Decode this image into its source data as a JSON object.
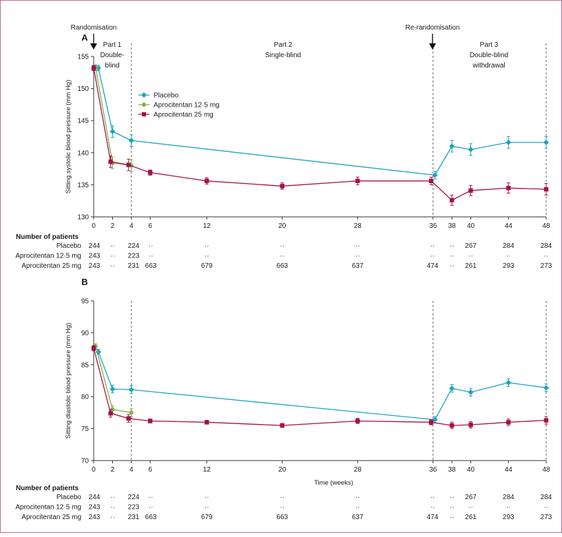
{
  "colors": {
    "placebo": "#1ca3c4",
    "aprocitentan_12_5": "#7cb342",
    "aprocitentan_25": "#a3124a",
    "axis": "#333333",
    "dashed": "#666666",
    "frame": "#c46a9a"
  },
  "annotations": {
    "randomisation": "Randomisation",
    "rerandomisation": "Re-randomisation",
    "part1": "Part 1",
    "part1_sub1": "Double-",
    "part1_sub2": "blind",
    "part2": "Part 2",
    "part2_sub": "Single-blind",
    "part3": "Part 3",
    "part3_sub1": "Double-blind",
    "part3_sub2": "withdrawal"
  },
  "time_label": "Time (weeks)",
  "x_ticks": [
    0,
    2,
    4,
    6,
    12,
    20,
    28,
    36,
    38,
    40,
    44,
    48
  ],
  "dividers": [
    4,
    36,
    48
  ],
  "patients_table": {
    "title": "Number of patients",
    "rows": [
      {
        "label": "Placebo",
        "values": [
          "244",
          "··",
          "224",
          "··",
          "··",
          "··",
          "··",
          "··",
          "··",
          "267",
          "284",
          "284"
        ]
      },
      {
        "label": "Aprocitentan 12·5 mg",
        "values": [
          "243",
          "··",
          "223",
          "··",
          "··",
          "··",
          "··",
          "··",
          "··",
          "··",
          "··",
          "··"
        ]
      },
      {
        "label": "Aprocitentan 25 mg",
        "values": [
          "243",
          "··",
          "231",
          "663",
          "679",
          "663",
          "637",
          "474",
          "··",
          "261",
          "293",
          "273"
        ]
      }
    ]
  },
  "chart_data": [
    {
      "panel": "A",
      "type": "line",
      "ylabel": "Sitting systolic blood pressure (mm Hg)",
      "xlabel": "",
      "ylim": [
        130,
        155
      ],
      "yticks": [
        130,
        135,
        140,
        145,
        150,
        155
      ],
      "xlim": [
        0,
        48
      ],
      "legend": {
        "position": "top-left",
        "entries": [
          "Placebo",
          "Aprocitentan 12·5 mg",
          "Aprocitentan 25 mg"
        ]
      },
      "series": [
        {
          "name": "Placebo",
          "marker": "diamond",
          "color_key": "placebo",
          "x": [
            0.5,
            2,
            4,
            36.2,
            38,
            40,
            44,
            48
          ],
          "y": [
            153.2,
            143.3,
            141.9,
            136.5,
            141.0,
            140.5,
            141.6,
            141.6
          ],
          "err": [
            0.4,
            0.9,
            0.9,
            0.6,
            0.9,
            0.9,
            0.9,
            0.9
          ]
        },
        {
          "name": "Aprocitentan 12·5 mg",
          "marker": "circle",
          "color_key": "aprocitentan_12_5",
          "x": [
            0.2,
            2,
            4
          ],
          "y": [
            153.3,
            138.4,
            138.0
          ],
          "err": [
            0.4,
            0.9,
            0.9
          ]
        },
        {
          "name": "Aprocitentan 25 mg",
          "marker": "square",
          "color_key": "aprocitentan_25",
          "x": [
            0,
            1.8,
            3.7,
            6,
            12,
            20,
            28,
            35.8,
            38,
            40,
            44,
            48
          ],
          "y": [
            153.2,
            138.6,
            138.1,
            136.9,
            135.6,
            134.8,
            135.6,
            135.6,
            132.6,
            134.1,
            134.5,
            134.3
          ],
          "err": [
            0.4,
            0.9,
            0.9,
            0.4,
            0.5,
            0.5,
            0.6,
            0.6,
            0.8,
            0.8,
            0.8,
            0.9
          ]
        }
      ]
    },
    {
      "panel": "B",
      "type": "line",
      "ylabel": "Sitting diastolic blood pressure (mm Hg)",
      "xlabel": "Time (weeks)",
      "ylim": [
        70,
        95
      ],
      "yticks": [
        70,
        75,
        80,
        85,
        90,
        95
      ],
      "xlim": [
        0,
        48
      ],
      "series": [
        {
          "name": "Placebo",
          "marker": "diamond",
          "color_key": "placebo",
          "x": [
            0.5,
            2,
            4,
            36.2,
            38,
            40,
            44,
            48
          ],
          "y": [
            87.0,
            81.2,
            81.1,
            76.4,
            81.3,
            80.7,
            82.2,
            81.4
          ],
          "err": [
            0.4,
            0.6,
            0.6,
            0.5,
            0.6,
            0.6,
            0.6,
            0.6
          ]
        },
        {
          "name": "Aprocitentan 12·5 mg",
          "marker": "circle",
          "color_key": "aprocitentan_12_5",
          "x": [
            0.2,
            2,
            4
          ],
          "y": [
            87.9,
            78.0,
            77.5
          ],
          "err": [
            0.4,
            0.6,
            0.6
          ]
        },
        {
          "name": "Aprocitentan 25 mg",
          "marker": "square",
          "color_key": "aprocitentan_25",
          "x": [
            0,
            1.8,
            3.7,
            6,
            12,
            20,
            28,
            35.8,
            38,
            40,
            44,
            48
          ],
          "y": [
            87.6,
            77.4,
            76.6,
            76.2,
            76.0,
            75.5,
            76.2,
            76.0,
            75.5,
            75.6,
            76.0,
            76.3
          ],
          "err": [
            0.4,
            0.6,
            0.6,
            0.3,
            0.3,
            0.3,
            0.4,
            0.4,
            0.5,
            0.5,
            0.5,
            0.6
          ]
        }
      ]
    }
  ]
}
